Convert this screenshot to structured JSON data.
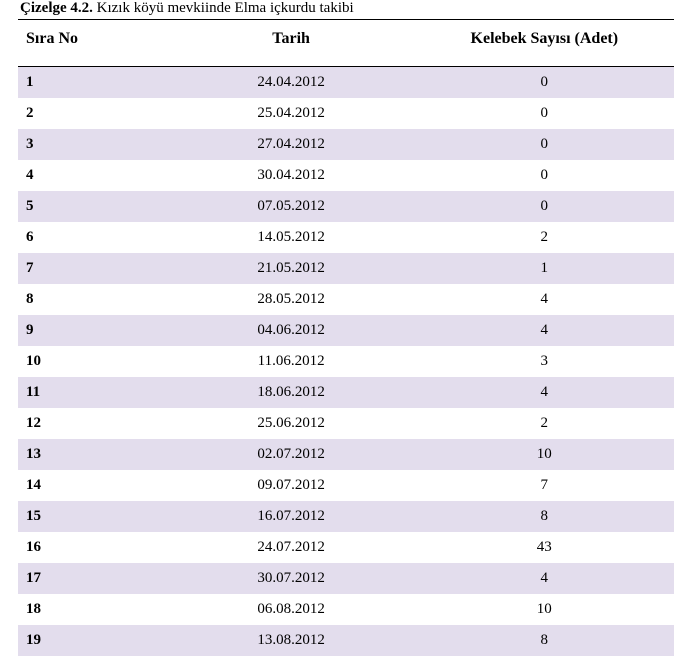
{
  "caption_label": "Çizelge 4.2.",
  "caption_text": " Kızık köyü mevkiinde Elma içkurdu takibi",
  "colors": {
    "odd_row_bg": "#e3dded",
    "even_row_bg": "#ffffff",
    "text": "#000000",
    "border": "#000000"
  },
  "typography": {
    "font_family": "Times New Roman",
    "header_fontsize_pt": 12,
    "body_fontsize_pt": 11,
    "caption_fontsize_pt": 11
  },
  "table": {
    "columns": [
      {
        "key": "no",
        "label": "Sıra No",
        "align": "left",
        "width_pct": 22
      },
      {
        "key": "date",
        "label": "Tarih",
        "align": "center",
        "width_pct": 38
      },
      {
        "key": "count",
        "label": "Kelebek Sayısı (Adet)",
        "align": "center",
        "width_pct": 40
      }
    ],
    "rows": [
      {
        "no": "1",
        "date": "24.04.2012",
        "count": "0"
      },
      {
        "no": "2",
        "date": "25.04.2012",
        "count": "0"
      },
      {
        "no": "3",
        "date": "27.04.2012",
        "count": "0"
      },
      {
        "no": "4",
        "date": "30.04.2012",
        "count": "0"
      },
      {
        "no": "5",
        "date": "07.05.2012",
        "count": "0"
      },
      {
        "no": "6",
        "date": "14.05.2012",
        "count": "2"
      },
      {
        "no": "7",
        "date": "21.05.2012",
        "count": "1"
      },
      {
        "no": "8",
        "date": "28.05.2012",
        "count": "4"
      },
      {
        "no": "9",
        "date": "04.06.2012",
        "count": "4"
      },
      {
        "no": "10",
        "date": "11.06.2012",
        "count": "3"
      },
      {
        "no": "11",
        "date": "18.06.2012",
        "count": "4"
      },
      {
        "no": "12",
        "date": "25.06.2012",
        "count": "2"
      },
      {
        "no": "13",
        "date": "02.07.2012",
        "count": "10"
      },
      {
        "no": "14",
        "date": "09.07.2012",
        "count": "7"
      },
      {
        "no": "15",
        "date": "16.07.2012",
        "count": "8"
      },
      {
        "no": "16",
        "date": "24.07.2012",
        "count": "43"
      },
      {
        "no": "17",
        "date": "30.07.2012",
        "count": "4"
      },
      {
        "no": "18",
        "date": "06.08.2012",
        "count": "10"
      },
      {
        "no": "19",
        "date": "13.08.2012",
        "count": "8"
      }
    ]
  }
}
